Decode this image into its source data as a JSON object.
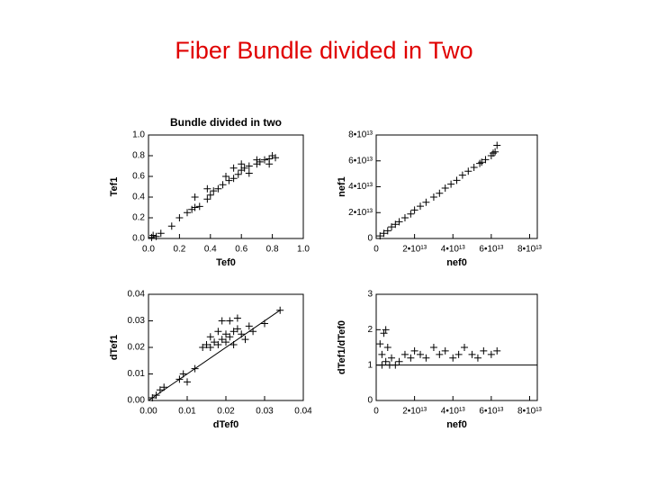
{
  "title": "Fiber Bundle divided in Two",
  "chart_data": [
    {
      "type": "scatter",
      "title": "Bundle divided in two",
      "x_label": "Tef0",
      "y_label": "Tef1",
      "color": "#000000",
      "xlim": [
        0,
        1
      ],
      "ylim": [
        0,
        1
      ],
      "xticks": [
        {
          "value": 0,
          "label": "0.0"
        },
        0.2,
        0.4,
        0.6,
        0.8,
        {
          "value": 1,
          "label": "1.0"
        }
      ],
      "yticks": [
        {
          "value": 0,
          "label": "0.0"
        },
        0.2,
        0.4,
        0.6,
        0.8,
        {
          "value": 1,
          "label": "1.0"
        }
      ],
      "x": [
        0.02,
        0.03,
        0.05,
        0.08,
        0.15,
        0.2,
        0.25,
        0.28,
        0.3,
        0.33,
        0.38,
        0.4,
        0.45,
        0.48,
        0.52,
        0.55,
        0.58,
        0.6,
        0.62,
        0.65,
        0.7,
        0.72,
        0.75,
        0.78,
        0.8,
        0.82,
        0.55,
        0.5,
        0.42,
        0.3,
        0.38,
        0.65,
        0.78,
        0.6,
        0.7
      ],
      "y": [
        0.01,
        0.03,
        0.02,
        0.05,
        0.12,
        0.2,
        0.25,
        0.28,
        0.3,
        0.31,
        0.38,
        0.42,
        0.48,
        0.52,
        0.56,
        0.58,
        0.62,
        0.66,
        0.68,
        0.7,
        0.72,
        0.74,
        0.76,
        0.77,
        0.8,
        0.78,
        0.68,
        0.6,
        0.46,
        0.4,
        0.48,
        0.63,
        0.72,
        0.72,
        0.76
      ]
    },
    {
      "type": "scatter",
      "x_label": "nef0",
      "y_label": "nef1",
      "color": "#000000",
      "xlim": [
        0,
        84000000000000.0
      ],
      "ylim": [
        0,
        80000000000000.0
      ],
      "xticks": [
        0,
        {
          "value": 20000000000000.0,
          "label": "2•10¹³"
        },
        {
          "value": 40000000000000.0,
          "label": "4•10¹³"
        },
        {
          "value": 60000000000000.0,
          "label": "6•10¹³"
        },
        {
          "value": 80000000000000.0,
          "label": "8•10¹³"
        }
      ],
      "yticks": [
        0,
        {
          "value": 20000000000000.0,
          "label": "2•10¹³"
        },
        {
          "value": 40000000000000.0,
          "label": "4•10¹³"
        },
        {
          "value": 60000000000000.0,
          "label": "6•10¹³"
        },
        {
          "value": 80000000000000.0,
          "label": "8•10¹³"
        }
      ],
      "x": [
        2000000000000.0,
        4000000000000.0,
        6000000000000.0,
        8000000000000.0,
        10000000000000.0,
        12000000000000.0,
        15000000000000.0,
        18000000000000.0,
        20000000000000.0,
        23000000000000.0,
        26000000000000.0,
        30000000000000.0,
        33000000000000.0,
        36000000000000.0,
        39000000000000.0,
        42000000000000.0,
        45000000000000.0,
        48000000000000.0,
        51000000000000.0,
        54000000000000.0,
        57000000000000.0,
        60000000000000.0,
        62000000000000.0,
        63000000000000.0,
        61000000000000.0,
        55000000000000.0
      ],
      "y": [
        2000000000000.0,
        4000000000000.0,
        6000000000000.0,
        9000000000000.0,
        11000000000000.0,
        13000000000000.0,
        16000000000000.0,
        19000000000000.0,
        22000000000000.0,
        25000000000000.0,
        28000000000000.0,
        32000000000000.0,
        35000000000000.0,
        39000000000000.0,
        42000000000000.0,
        45000000000000.0,
        49000000000000.0,
        52000000000000.0,
        55000000000000.0,
        58000000000000.0,
        61000000000000.0,
        64000000000000.0,
        67000000000000.0,
        72000000000000.0,
        66000000000000.0,
        59000000000000.0
      ]
    },
    {
      "type": "scatter",
      "x_label": "dTef0",
      "y_label": "dTef1",
      "color": "#000000",
      "xlim": [
        0,
        0.04
      ],
      "ylim": [
        0,
        0.04
      ],
      "xticks": [
        {
          "value": 0,
          "label": "0.00"
        },
        0.01,
        0.02,
        0.03,
        0.04
      ],
      "yticks": [
        {
          "value": 0,
          "label": "0.00"
        },
        0.01,
        0.02,
        0.03,
        0.04
      ],
      "reference_line": {
        "x": [
          0,
          0.034
        ],
        "y": [
          0,
          0.034
        ]
      },
      "x": [
        0.001,
        0.002,
        0.003,
        0.004,
        0.008,
        0.009,
        0.01,
        0.012,
        0.014,
        0.015,
        0.016,
        0.017,
        0.018,
        0.019,
        0.02,
        0.021,
        0.022,
        0.023,
        0.019,
        0.021,
        0.024,
        0.025,
        0.027,
        0.026,
        0.02,
        0.018,
        0.022,
        0.016,
        0.023,
        0.03,
        0.034
      ],
      "y": [
        0.001,
        0.002,
        0.004,
        0.005,
        0.008,
        0.01,
        0.007,
        0.012,
        0.02,
        0.021,
        0.02,
        0.022,
        0.021,
        0.023,
        0.025,
        0.024,
        0.026,
        0.027,
        0.03,
        0.03,
        0.025,
        0.023,
        0.026,
        0.028,
        0.022,
        0.026,
        0.021,
        0.024,
        0.031,
        0.029,
        0.034
      ]
    },
    {
      "type": "scatter",
      "x_label": "nef0",
      "y_label": "dTef1/dTef0",
      "color": "#000000",
      "xlim": [
        0,
        84000000000000.0
      ],
      "ylim": [
        0,
        3
      ],
      "xticks": [
        0,
        {
          "value": 20000000000000.0,
          "label": "2•10¹³"
        },
        {
          "value": 40000000000000.0,
          "label": "4•10¹³"
        },
        {
          "value": 60000000000000.0,
          "label": "6•10¹³"
        },
        {
          "value": 80000000000000.0,
          "label": "8•10¹³"
        }
      ],
      "yticks": [
        0,
        1,
        2,
        3
      ],
      "hline": 1,
      "x": [
        2000000000000.0,
        3000000000000.0,
        4000000000000.0,
        5000000000000.0,
        6000000000000.0,
        8000000000000.0,
        10000000000000.0,
        12000000000000.0,
        15000000000000.0,
        18000000000000.0,
        20000000000000.0,
        23000000000000.0,
        26000000000000.0,
        30000000000000.0,
        33000000000000.0,
        36000000000000.0,
        40000000000000.0,
        43000000000000.0,
        46000000000000.0,
        50000000000000.0,
        53000000000000.0,
        56000000000000.0,
        60000000000000.0,
        63000000000000.0,
        3000000000000.0,
        5000000000000.0,
        7000000000000.0
      ],
      "y": [
        1.6,
        1.0,
        1.9,
        1.1,
        1.5,
        1.2,
        1.0,
        1.1,
        1.3,
        1.2,
        1.4,
        1.3,
        1.2,
        1.5,
        1.3,
        1.4,
        1.2,
        1.3,
        1.5,
        1.3,
        1.2,
        1.4,
        1.3,
        1.4,
        1.3,
        2.0,
        1.0
      ]
    }
  ]
}
